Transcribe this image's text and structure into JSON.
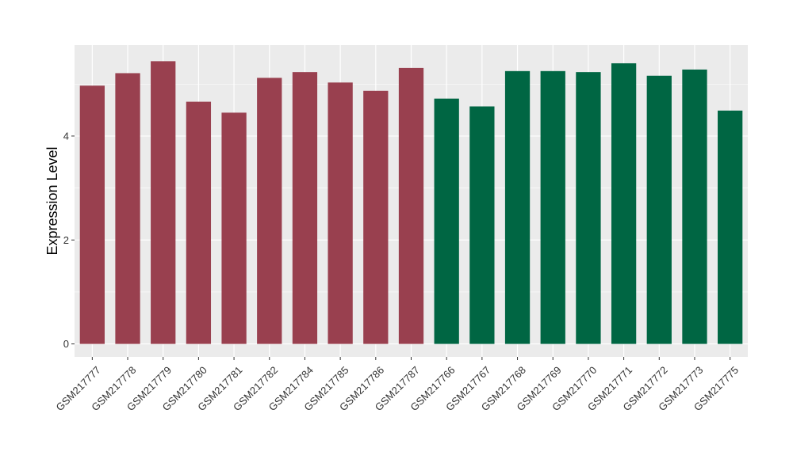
{
  "chart_data": {
    "type": "bar",
    "ylabel": "Expression Level",
    "xlabel": "",
    "title": "",
    "ylim": [
      -0.25,
      5.75
    ],
    "yticks": [
      0,
      2,
      4
    ],
    "grid": true,
    "categories": [
      "GSM217777",
      "GSM217778",
      "GSM217779",
      "GSM217780",
      "GSM217781",
      "GSM217782",
      "GSM217784",
      "GSM217785",
      "GSM217786",
      "GSM217787",
      "GSM217766",
      "GSM217767",
      "GSM217768",
      "GSM217769",
      "GSM217770",
      "GSM217771",
      "GSM217772",
      "GSM217773",
      "GSM217775"
    ],
    "values": [
      4.97,
      5.21,
      5.44,
      4.66,
      4.45,
      5.12,
      5.23,
      5.03,
      4.87,
      5.31,
      4.72,
      4.57,
      5.25,
      5.25,
      5.23,
      5.4,
      5.16,
      5.28,
      4.49
    ],
    "bar_colors": [
      "#99404f",
      "#99404f",
      "#99404f",
      "#99404f",
      "#99404f",
      "#99404f",
      "#99404f",
      "#99404f",
      "#99404f",
      "#99404f",
      "#006643",
      "#006643",
      "#006643",
      "#006643",
      "#006643",
      "#006643",
      "#006643",
      "#006643",
      "#006643"
    ],
    "panel_background": "#ebebeb",
    "gridline_color": "#ffffff"
  }
}
